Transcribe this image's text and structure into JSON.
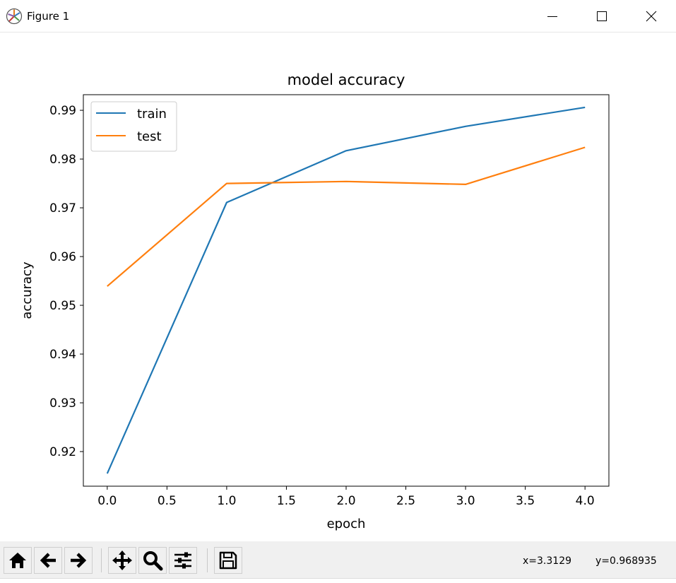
{
  "window": {
    "title": "Figure 1",
    "icons": {
      "app": "matplotlib-logo-icon",
      "minimize": "minimize-icon",
      "maximize": "maximize-icon",
      "close": "close-icon"
    }
  },
  "toolbar": {
    "buttons": [
      {
        "icon": "home-icon"
      },
      {
        "icon": "back-arrow-icon"
      },
      {
        "icon": "forward-arrow-icon"
      },
      {
        "icon": "pan-icon"
      },
      {
        "icon": "zoom-icon"
      },
      {
        "icon": "subplots-icon"
      },
      {
        "icon": "save-icon"
      }
    ],
    "x_readout": "x=3.3129",
    "y_readout": "y=0.968935"
  },
  "chart_data": {
    "type": "line",
    "title": "model accuracy",
    "xlabel": "epoch",
    "ylabel": "accuracy",
    "x": [
      0,
      1,
      2,
      3,
      4
    ],
    "series": [
      {
        "name": "train",
        "color": "#1f77b4",
        "values": [
          0.9155,
          0.9711,
          0.9817,
          0.9867,
          0.9906
        ]
      },
      {
        "name": "test",
        "color": "#ff7f0e",
        "values": [
          0.9539,
          0.975,
          0.9754,
          0.9748,
          0.9824
        ]
      }
    ],
    "xlim": [
      -0.2,
      4.2
    ],
    "ylim": [
      0.9129,
      0.9932
    ],
    "xticks": [
      "0.0",
      "0.5",
      "1.0",
      "1.5",
      "2.0",
      "2.5",
      "3.0",
      "3.5",
      "4.0"
    ],
    "yticks": [
      "0.92",
      "0.93",
      "0.94",
      "0.95",
      "0.96",
      "0.97",
      "0.98",
      "0.99"
    ],
    "legend": "upper left",
    "grid": false
  }
}
